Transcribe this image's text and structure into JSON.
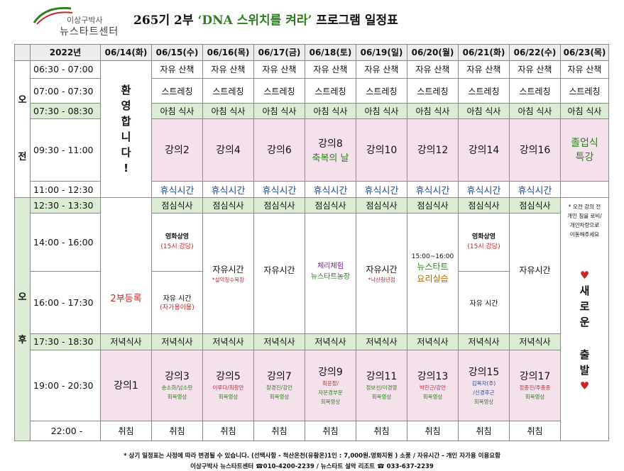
{
  "logo": {
    "line1": "이상구박사",
    "line2": "뉴스타트센터"
  },
  "title": {
    "part1": "265기 2부 ",
    "highlight": "‘DNA 스위치를 켜라’",
    "part2": " 프로그램 일정표"
  },
  "headers": [
    "2022년",
    "06/14(화)",
    "06/15(수)",
    "06/16(목)",
    "06/17(금)",
    "06/18(토)",
    "06/19(일)",
    "06/20(월)",
    "06/21(화)",
    "06/22(수)",
    "06/23(목)"
  ],
  "ampm": {
    "am": [
      "오",
      "전"
    ],
    "pm": [
      "오",
      "후"
    ]
  },
  "times": [
    "06:30 - 07:00",
    "07:00 - 07:30",
    "07:30 - 08:30",
    "09:30 - 11:00",
    "11:00 - 12:30",
    "12:30 - 13:30",
    "14:00 - 16:00",
    "16:00 - 17:30",
    "17:30 - 18:30",
    "19:00 - 20:30",
    "22:00 -"
  ],
  "welcome": [
    "환",
    "영",
    "합",
    "니",
    "다",
    "!"
  ],
  "walk": "자유 산책",
  "stretch": "스트레칭",
  "breakfast": "아침 식사",
  "lunch": "점심식사",
  "dinner": "저녁식사",
  "rest": "휴식시간",
  "sleep": "취침",
  "morning_lectures": [
    "강의2",
    "강의4",
    "강의6",
    "강의8",
    "강의10",
    "강의12",
    "강의14",
    "강의16"
  ],
  "blessing_day": "축복의 날",
  "graduation": [
    "졸업식",
    "특강"
  ],
  "registration": "2부등록",
  "d15": {
    "movie": "영화상영",
    "movie_time": "(15시 강당)",
    "free": "자유 시간",
    "free_note": "(자가용이용)"
  },
  "d16": {
    "free": "자유시간",
    "note": "*설악청수목장"
  },
  "d17": {
    "free": "자유시간"
  },
  "d18": {
    "farm1": "체리체험",
    "farm2": "뉴스타트농장"
  },
  "d19": {
    "free": "자유시간",
    "note": "*낙산청년점"
  },
  "d20": {
    "time": "15:00~16:00",
    "cook1": "뉴스타트",
    "cook2": "요리실습"
  },
  "d21": {
    "movie": "영화상영",
    "movie_time": "(15시 강당)",
    "free": "자유 시간"
  },
  "d22": {
    "free": "자유시간"
  },
  "d23": {
    "note": [
      "* 오전 강의 전",
      "개인 짐을 로비/",
      "개인차량으로",
      "이동해주세요"
    ],
    "heart": "♥",
    "word1": [
      "새",
      "로",
      "운"
    ],
    "word2": [
      "출",
      "발"
    ]
  },
  "evening": [
    {
      "lecture": "강의1",
      "subs": []
    },
    {
      "lecture": "강의3",
      "subs": [
        "송소희/남소란",
        "회복영상"
      ]
    },
    {
      "lecture": "강의5",
      "subs": [
        "이루다/최창안",
        "회복영상"
      ]
    },
    {
      "lecture": "강의7",
      "subs": [
        "장경진/강안",
        "회복영상"
      ]
    },
    {
      "lecture": "강의9",
      "subs": [
        "최윤정/",
        "자문경부문",
        "회복영상"
      ]
    },
    {
      "lecture": "강의11",
      "subs": [
        "정보선/이경영",
        "회복영상"
      ]
    },
    {
      "lecture": "강의13",
      "subs": [
        "박한근/강안",
        "회복영상"
      ]
    },
    {
      "lecture": "강의15",
      "subs": [
        "김복자(주)",
        "/신경후근",
        "회복영상"
      ]
    },
    {
      "lecture": "강의17",
      "subs": [
        "정종진/주종종",
        "회복영상"
      ]
    }
  ],
  "footer": {
    "line1": "* 상기 일정표는 사정에 따라 변경될 수 있습니다.  (선택사항 - 척산온천(유황온)1인 : 7,000원.영화지원 )  소풍 / 자유시간 - 개인 자가용 이용요함",
    "line2": "이상구박사 뉴스타트센터 ☎010-4200-2239 / 뉴스타트 설악 리조트 ☎ 033-637-2239"
  },
  "colors": {
    "green_row": "#dcebd3",
    "pink_cell": "#f4e1ec",
    "accent_green": "#2e7d1e",
    "accent_red": "#c62828",
    "rest_blue": "#1f4e9a"
  }
}
